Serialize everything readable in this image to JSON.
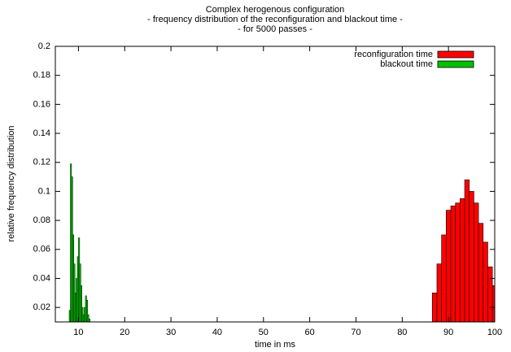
{
  "chart_data": {
    "type": "histogram",
    "title": [
      "Complex herogenous configuration",
      "- frequency distribution of the reconfiguration and blackout time -",
      "- for 5000 passes -"
    ],
    "x_label": "time in ms",
    "y_label": "relative frequency distribution",
    "xlim": [
      5,
      100
    ],
    "ylim": [
      0.01,
      0.2
    ],
    "xticks": [
      10,
      20,
      30,
      40,
      50,
      60,
      70,
      80,
      90,
      100
    ],
    "yticks": [
      0.02,
      0.04,
      0.06,
      0.08,
      0.1,
      0.12,
      0.14,
      0.16,
      0.18,
      0.2
    ],
    "legend": "top-right",
    "grid": false,
    "series": [
      {
        "name": "reconfiguration time",
        "color": "#ff0000",
        "bins": [
          86.5,
          87.5,
          88.5,
          89.5,
          90.5,
          91.5,
          92.5,
          93.5,
          94.5,
          95.5,
          96.5,
          97.5,
          98.5,
          99.5,
          100.5
        ],
        "values": [
          0.03,
          0.05,
          0.07,
          0.087,
          0.09,
          0.092,
          0.095,
          0.108,
          0.1,
          0.092,
          0.078,
          0.065,
          0.048,
          0.035
        ]
      },
      {
        "name": "blackout time",
        "color": "#00c000",
        "bins": [
          8.0,
          8.25,
          8.5,
          8.75,
          9.0,
          9.25,
          9.5,
          9.75,
          10.0,
          10.25,
          10.5,
          10.75,
          11.0,
          11.25,
          11.5,
          11.75,
          12.0,
          12.25,
          12.5
        ],
        "values": [
          0.018,
          0.119,
          0.11,
          0.07,
          0.05,
          0.03,
          0.04,
          0.055,
          0.068,
          0.05,
          0.035,
          0.02,
          0.015,
          0.02,
          0.028,
          0.025,
          0.015,
          0.012
        ]
      }
    ]
  }
}
